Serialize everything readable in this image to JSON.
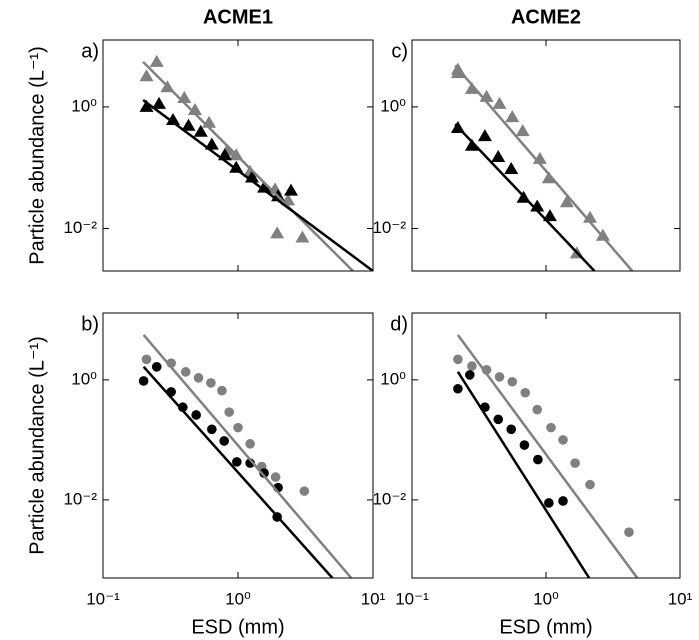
{
  "chart_data": [
    {
      "type": "scatter",
      "title": "ACME1",
      "panel_label": "a)",
      "ylabel": "Particle abundance (L⁻¹)",
      "log_x": true,
      "log_y": true,
      "xlim": [
        0.1,
        10
      ],
      "xticks": [
        {
          "value": 0.1,
          "label": "10⁻¹"
        },
        {
          "value": 1,
          "label": "10⁰"
        },
        {
          "value": 10,
          "label": "10¹"
        }
      ],
      "ylim": [
        0.002,
        12.6
      ],
      "yticks": [
        {
          "value": 0.01,
          "label": "10⁻²"
        },
        {
          "value": 1,
          "label": "10⁰"
        }
      ],
      "series": [
        {
          "mode": "markers",
          "marker": "triangle",
          "color": "#808080",
          "x": [
            0.21,
            0.25,
            0.3,
            0.4,
            0.48,
            0.61,
            0.83,
            0.97,
            1.23,
            1.88,
            2.35,
            1.95,
            3.0
          ],
          "values": [
            3.2,
            5.5,
            2.1,
            1.4,
            0.89,
            0.55,
            0.19,
            0.16,
            0.085,
            0.044,
            0.029,
            0.0083,
            0.0071
          ]
        },
        {
          "mode": "markers",
          "marker": "triangle",
          "color": "#000000",
          "x": [
            0.21,
            0.26,
            0.33,
            0.43,
            0.53,
            0.64,
            0.8,
            0.97,
            1.27,
            1.56,
            1.98,
            2.47
          ],
          "values": [
            1.0,
            1.12,
            0.61,
            0.49,
            0.39,
            0.24,
            0.16,
            0.1,
            0.069,
            0.047,
            0.034,
            0.042
          ]
        },
        {
          "mode": "line",
          "color": "#808080",
          "x": [
            0.198,
            7.1
          ],
          "values": [
            5.5,
            0.002
          ]
        },
        {
          "mode": "line",
          "color": "#000000",
          "x": [
            0.198,
            10
          ],
          "values": [
            1.3,
            0.002
          ]
        }
      ]
    },
    {
      "type": "scatter",
      "panel_label": "b)",
      "ylabel": "Particle abundance (L⁻¹)",
      "xlabel": "ESD (mm)",
      "log_x": true,
      "log_y": true,
      "xlim": [
        0.1,
        10
      ],
      "xticks": [
        {
          "value": 0.1,
          "label": "10⁻¹"
        },
        {
          "value": 1,
          "label": "10⁰"
        },
        {
          "value": 10,
          "label": "10¹"
        }
      ],
      "ylim": [
        0.0005,
        13
      ],
      "yticks": [
        {
          "value": 0.01,
          "label": "10⁻²"
        },
        {
          "value": 1,
          "label": "10⁰"
        }
      ],
      "series": [
        {
          "mode": "markers",
          "marker": "circle",
          "color": "#808080",
          "x": [
            0.21,
            0.32,
            0.41,
            0.51,
            0.63,
            0.76,
            0.86,
            1.0,
            1.23,
            1.5,
            1.9,
            3.1
          ],
          "values": [
            2.2,
            1.9,
            1.36,
            1.08,
            0.89,
            0.66,
            0.29,
            0.16,
            0.086,
            0.036,
            0.024,
            0.014
          ]
        },
        {
          "mode": "markers",
          "marker": "circle",
          "color": "#000000",
          "x": [
            0.2,
            0.25,
            0.32,
            0.39,
            0.49,
            0.64,
            0.79,
            0.98,
            1.23,
            1.56,
            1.98,
            1.95
          ],
          "values": [
            0.96,
            1.65,
            0.63,
            0.35,
            0.26,
            0.15,
            0.096,
            0.043,
            0.041,
            0.028,
            0.016,
            0.0052
          ]
        },
        {
          "mode": "line",
          "color": "#808080",
          "x": [
            0.2,
            6.9
          ],
          "values": [
            5.6,
            0.0005
          ]
        },
        {
          "mode": "line",
          "color": "#000000",
          "x": [
            0.2,
            5.0
          ],
          "values": [
            1.65,
            0.0005
          ]
        }
      ]
    },
    {
      "type": "scatter",
      "title": "ACME2",
      "panel_label": "c)",
      "log_x": true,
      "log_y": true,
      "xlim": [
        0.1,
        10
      ],
      "xticks": [
        {
          "value": 0.1,
          "label": "10⁻¹"
        },
        {
          "value": 1,
          "label": "10⁰"
        },
        {
          "value": 10,
          "label": "10¹"
        }
      ],
      "ylim": [
        0.002,
        12.6
      ],
      "yticks": [
        {
          "value": 0.01,
          "label": "10⁻²"
        },
        {
          "value": 1,
          "label": "10⁰"
        }
      ],
      "series": [
        {
          "mode": "markers",
          "marker": "triangle",
          "color": "#808080",
          "x": [
            0.22,
            0.22,
            0.28,
            0.36,
            0.45,
            0.56,
            0.67,
            0.9,
            1.05,
            1.43,
            2.13,
            2.66,
            1.7
          ],
          "values": [
            4.1,
            3.6,
            1.98,
            1.46,
            1.12,
            0.68,
            0.4,
            0.14,
            0.067,
            0.027,
            0.015,
            0.0076,
            0.0039
          ]
        },
        {
          "mode": "markers",
          "marker": "triangle",
          "color": "#000000",
          "x": [
            0.22,
            0.28,
            0.35,
            0.44,
            0.55,
            0.68,
            0.86,
            1.07
          ],
          "values": [
            0.45,
            0.23,
            0.33,
            0.15,
            0.095,
            0.032,
            0.023,
            0.016
          ]
        },
        {
          "mode": "line",
          "color": "#808080",
          "x": [
            0.21,
            4.4
          ],
          "values": [
            4.8,
            0.002
          ]
        },
        {
          "mode": "line",
          "color": "#000000",
          "x": [
            0.21,
            2.3
          ],
          "values": [
            0.52,
            0.002
          ]
        }
      ]
    },
    {
      "type": "scatter",
      "panel_label": "d)",
      "xlabel": "ESD (mm)",
      "log_x": true,
      "log_y": true,
      "xlim": [
        0.1,
        10
      ],
      "xticks": [
        {
          "value": 0.1,
          "label": "10⁻¹"
        },
        {
          "value": 1,
          "label": "10⁰"
        },
        {
          "value": 10,
          "label": "10¹"
        }
      ],
      "ylim": [
        0.0005,
        13
      ],
      "yticks": [
        {
          "value": 0.01,
          "label": "10⁻²"
        },
        {
          "value": 1,
          "label": "10⁰"
        }
      ],
      "series": [
        {
          "mode": "markers",
          "marker": "circle",
          "color": "#808080",
          "x": [
            0.22,
            0.28,
            0.36,
            0.45,
            0.56,
            0.7,
            0.86,
            1.09,
            1.34,
            1.65,
            2.13,
            4.16
          ],
          "values": [
            2.2,
            1.7,
            1.47,
            1.12,
            0.93,
            0.61,
            0.32,
            0.16,
            0.1,
            0.041,
            0.018,
            0.0029
          ]
        },
        {
          "mode": "markers",
          "marker": "circle",
          "color": "#000000",
          "x": [
            0.22,
            0.27,
            0.35,
            0.44,
            0.55,
            0.69,
            0.87,
            1.05,
            1.34
          ],
          "values": [
            0.71,
            1.21,
            0.35,
            0.22,
            0.15,
            0.082,
            0.047,
            0.0089,
            0.0096
          ]
        },
        {
          "mode": "line",
          "color": "#808080",
          "x": [
            0.22,
            4.8
          ],
          "values": [
            5.6,
            0.0005
          ]
        },
        {
          "mode": "line",
          "color": "#000000",
          "x": [
            0.22,
            2.1
          ],
          "values": [
            1.36,
            0.0005
          ]
        }
      ]
    }
  ]
}
